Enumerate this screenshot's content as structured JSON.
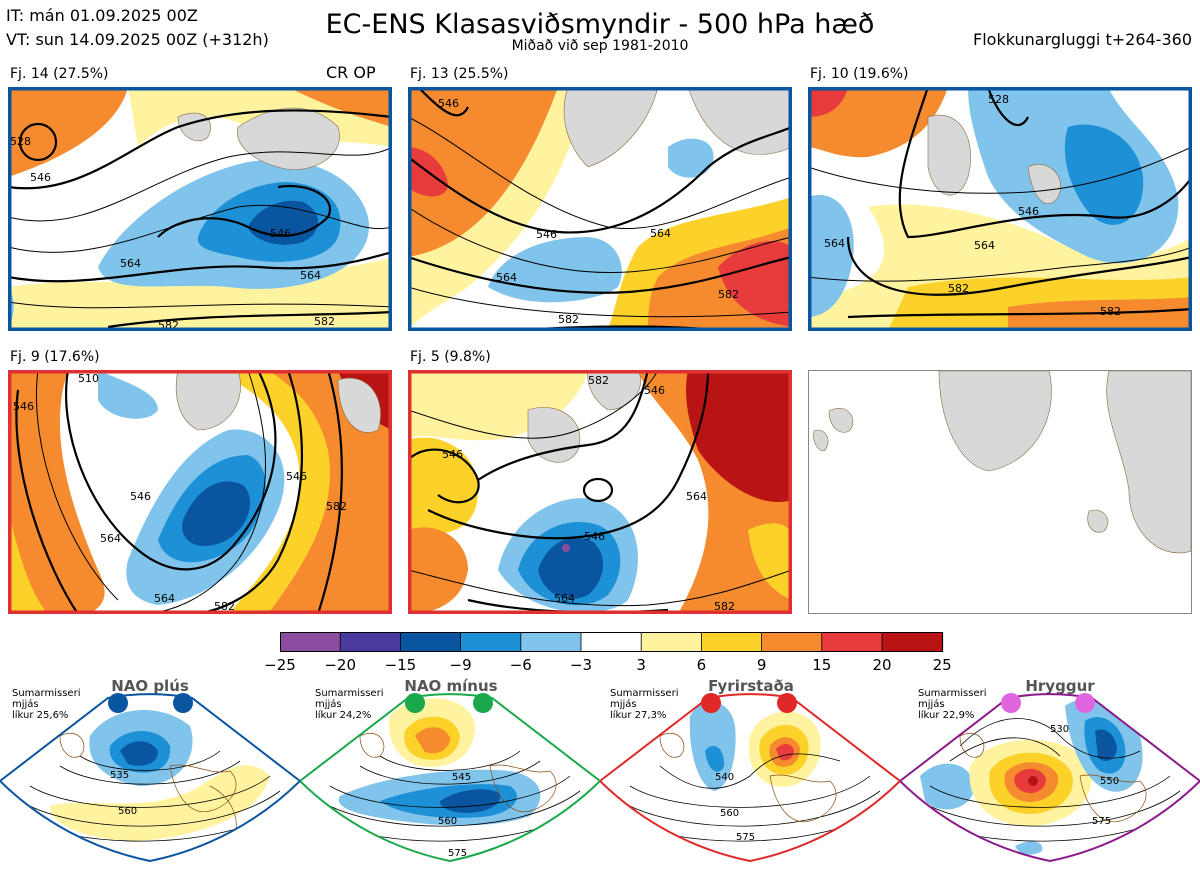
{
  "header": {
    "it_line": "IT: mán 01.09.2025 00Z",
    "vt_line": "VT: sun 14.09.2025 00Z  (+312h)",
    "title": "EC-ENS Klasasviðsmyndir - 500 hPa hæð",
    "subtitle": "Miðað við sep 1981-2010",
    "window": "Flokkunargluggi t+264-360"
  },
  "clusters": [
    {
      "label": "Fj. 14 (27.5%)",
      "tag": "CR OP",
      "frame_color": "#0a55a0",
      "contours": [
        "546",
        "546",
        "564",
        "564",
        "582",
        "582",
        "528"
      ]
    },
    {
      "label": "Fj. 13 (25.5%)",
      "tag": "",
      "frame_color": "#0a55a0",
      "contours": [
        "546",
        "546",
        "564",
        "564",
        "582",
        "582"
      ]
    },
    {
      "label": "Fj. 10 (19.6%)",
      "tag": "",
      "frame_color": "#0a55a0",
      "contours": [
        "546",
        "564",
        "564",
        "582",
        "582",
        "528"
      ]
    },
    {
      "label": "Fj. 9 (17.6%)",
      "tag": "",
      "frame_color": "#e03030",
      "contours": [
        "546",
        "546",
        "546",
        "564",
        "564",
        "582",
        "582",
        "510"
      ]
    },
    {
      "label": "Fj. 5 (9.8%)",
      "tag": "",
      "frame_color": "#e03030",
      "contours": [
        "546",
        "546",
        "546",
        "564",
        "564",
        "582",
        "582"
      ]
    }
  ],
  "colorbar": {
    "ticks": [
      "−25",
      "−20",
      "−15",
      "−9",
      "−6",
      "−3",
      "3",
      "6",
      "9",
      "15",
      "20",
      "25"
    ],
    "colors": [
      "#8b4b9e",
      "#4a3aa0",
      "#0a55a0",
      "#1e90d6",
      "#80c4ec",
      "#ffffff",
      "#fff3a0",
      "#fcd22a",
      "#f58a2e",
      "#e83c3c",
      "#b81414"
    ]
  },
  "regimes": [
    {
      "title": "NAO plús",
      "note": "Sumarmisseri\nmjjás\nlíkur 25,6%",
      "color": "#0a55a0",
      "contours": [
        "535",
        "560"
      ]
    },
    {
      "title": "NAO mínus",
      "note": "Sumarmisseri\nmjjás\nlíkur 24,2%",
      "color": "#1aa84a",
      "contours": [
        "545",
        "560",
        "575"
      ]
    },
    {
      "title": "Fyrirstaða",
      "note": "Sumarmisseri\nmjjás\nlíkur 27,3%",
      "color": "#e02828",
      "contours": [
        "540",
        "560",
        "575"
      ]
    },
    {
      "title": "Hryggur",
      "note": "Sumarmisseri\nmjjás\nlíkur 22,9%",
      "color": "#e066e0",
      "contours": [
        "530",
        "550",
        "575"
      ]
    }
  ],
  "chart_data": {
    "type": "heatmap",
    "title": "EC-ENS Klasasviðsmyndir - 500 hPa hæð",
    "subtitle": "Miðað við sep 1981-2010",
    "colorbar_levels": [
      -25,
      -20,
      -15,
      -9,
      -6,
      -3,
      3,
      6,
      9,
      15,
      20,
      25
    ],
    "series": [
      {
        "name": "Fj. 14",
        "probability_percent": 27.5,
        "contour_levels": [
          528,
          546,
          564,
          582
        ]
      },
      {
        "name": "Fj. 13",
        "probability_percent": 25.5,
        "contour_levels": [
          546,
          564,
          582
        ]
      },
      {
        "name": "Fj. 10",
        "probability_percent": 19.6,
        "contour_levels": [
          528,
          546,
          564,
          582
        ]
      },
      {
        "name": "Fj. 9",
        "probability_percent": 17.6,
        "contour_levels": [
          510,
          546,
          564,
          582
        ]
      },
      {
        "name": "Fj. 5",
        "probability_percent": 9.8,
        "contour_levels": [
          546,
          564,
          582
        ]
      }
    ],
    "regimes": [
      {
        "name": "NAO plús",
        "probability_percent": 25.6
      },
      {
        "name": "NAO mínus",
        "probability_percent": 24.2
      },
      {
        "name": "Fyrirstaða",
        "probability_percent": 27.3
      },
      {
        "name": "Hryggur",
        "probability_percent": 22.9
      }
    ]
  }
}
